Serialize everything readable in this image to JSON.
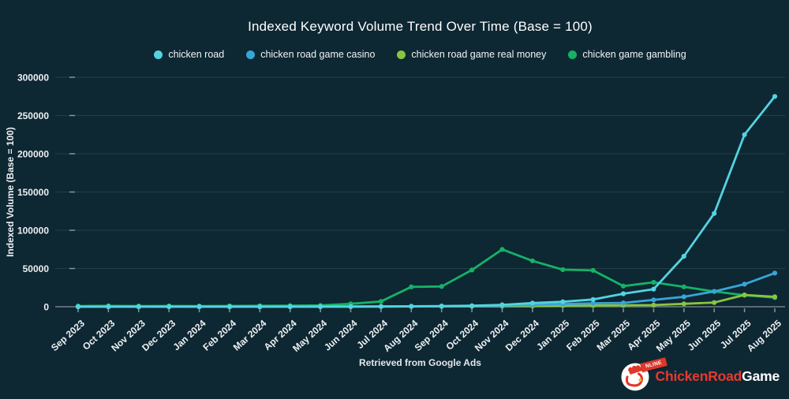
{
  "page": {
    "footer": "Retrieved from Google Ads"
  },
  "brand": {
    "badge": "NLINE",
    "name_primary": "ChickenRoad",
    "name_secondary": "Game"
  },
  "chart_data": {
    "type": "line",
    "title": "Indexed Keyword Volume Trend Over Time (Base = 100)",
    "xlabel": "Retrieved from Google Ads",
    "ylabel": "Indexed Volume (Base = 100)",
    "ylim": [
      0,
      300000
    ],
    "yticks": [
      0,
      50000,
      100000,
      150000,
      200000,
      250000,
      300000
    ],
    "grid": true,
    "legend_position": "top",
    "x": [
      "Sep 2023",
      "Oct 2023",
      "Nov 2023",
      "Dec 2023",
      "Jan 2024",
      "Feb 2024",
      "Mar 2024",
      "Apr 2024",
      "May 2024",
      "Jun 2024",
      "Jul 2024",
      "Aug 2024",
      "Sep 2024",
      "Oct 2024",
      "Nov 2024",
      "Dec 2024",
      "Jan 2025",
      "Feb 2025",
      "Mar 2025",
      "Apr 2025",
      "May 2025",
      "Jun 2025",
      "Jul 2025",
      "Aug 2025"
    ],
    "series": [
      {
        "name": "chicken road",
        "color": "#53d3e0",
        "values": [
          100,
          100,
          100,
          100,
          100,
          100,
          100,
          100,
          200,
          300,
          400,
          600,
          900,
          1300,
          2500,
          4800,
          6500,
          9500,
          17000,
          23000,
          66000,
          122000,
          225000,
          275000
        ]
      },
      {
        "name": "chicken road game casino",
        "color": "#38a5d8",
        "values": [
          100,
          100,
          100,
          100,
          100,
          100,
          100,
          100,
          150,
          200,
          300,
          450,
          650,
          900,
          1500,
          2500,
          3500,
          4500,
          5000,
          9000,
          13000,
          20000,
          29500,
          44000
        ]
      },
      {
        "name": "chicken road game real money",
        "color": "#88c540",
        "values": [
          100,
          100,
          100,
          100,
          100,
          100,
          100,
          100,
          100,
          150,
          200,
          300,
          400,
          550,
          700,
          1000,
          1400,
          1600,
          1900,
          2200,
          3800,
          5500,
          15500,
          13000
        ]
      },
      {
        "name": "chicken game gambling",
        "color": "#15b266",
        "values": [
          900,
          1100,
          950,
          1000,
          950,
          1050,
          1200,
          1400,
          1800,
          3800,
          6900,
          26000,
          26500,
          48000,
          75000,
          60000,
          48500,
          47500,
          27000,
          32000,
          26000,
          20000,
          15000,
          12000
        ]
      }
    ]
  }
}
